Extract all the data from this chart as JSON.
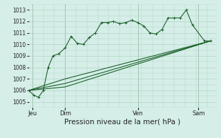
{
  "title": "Pression niveau de la mer( hPa )",
  "bg_color": "#cbe8d4",
  "plot_bg": "#d5eee8",
  "grid_color": "#b0d4c4",
  "line_color": "#1a5e28",
  "ylim": [
    1004.5,
    1013.5
  ],
  "yticks": [
    1005,
    1006,
    1007,
    1008,
    1009,
    1010,
    1011,
    1012,
    1013
  ],
  "xlim": [
    0,
    15.5
  ],
  "day_positions": [
    0.3,
    3.0,
    9.0,
    14.0
  ],
  "day_labels": [
    "Jeu",
    "Dim",
    "Ven",
    "Sam"
  ],
  "day_vlines": [
    0.3,
    3.0,
    9.0,
    14.0
  ],
  "series1_x": [
    0.0,
    0.4,
    0.8,
    1.2,
    1.6,
    2.0,
    2.5,
    3.0,
    3.5,
    4.0,
    4.5,
    5.0,
    5.5,
    6.0,
    6.5,
    7.0,
    7.5,
    8.0,
    8.5,
    9.0,
    9.5,
    10.0,
    10.5,
    11.0,
    11.5,
    12.0,
    12.5,
    13.0,
    13.5,
    14.5,
    15.0
  ],
  "series1_y": [
    1006.0,
    1005.6,
    1005.4,
    1006.0,
    1008.0,
    1009.0,
    1009.2,
    1009.7,
    1010.7,
    1010.1,
    1010.0,
    1010.6,
    1011.0,
    1011.9,
    1011.9,
    1012.0,
    1011.8,
    1011.9,
    1012.1,
    1011.9,
    1011.6,
    1011.0,
    1010.9,
    1011.3,
    1012.3,
    1012.3,
    1012.3,
    1013.0,
    1011.7,
    1010.3,
    1010.3
  ],
  "series2_x": [
    0.0,
    3.0,
    15.0
  ],
  "series2_y": [
    1006.0,
    1006.3,
    1010.3
  ],
  "series3_x": [
    0.0,
    3.0,
    15.0
  ],
  "series3_y": [
    1006.0,
    1006.6,
    1010.3
  ],
  "series4_x": [
    0.0,
    3.0,
    15.0
  ],
  "series4_y": [
    1006.0,
    1007.0,
    1010.3
  ],
  "ylabel_fontsize": 5.5,
  "xlabel_fontsize": 7.5,
  "tick_fontsize": 6.0
}
